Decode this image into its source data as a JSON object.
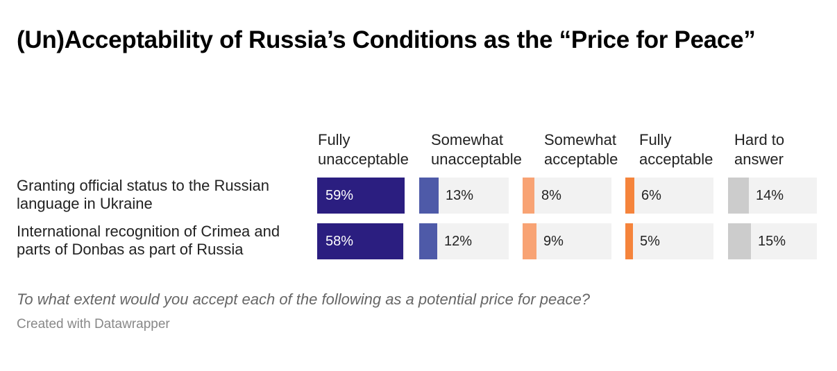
{
  "chart_data": {
    "type": "bar",
    "title": "(Un)Acceptability of Russia’s Conditions as the “Price for Peace”",
    "columns": [
      {
        "name": "Fully unacceptable",
        "lines": [
          "Fully",
          "unacceptable"
        ],
        "color": "#2b1e80"
      },
      {
        "name": "Somewhat unacceptable",
        "lines": [
          "Somewhat",
          "unacceptable"
        ],
        "color": "#4e5aa8"
      },
      {
        "name": "Somewhat acceptable",
        "lines": [
          "Somewhat",
          "acceptable"
        ],
        "color": "#f8a374"
      },
      {
        "name": "Fully acceptable",
        "lines": [
          "Fully",
          "acceptable"
        ],
        "color": "#f5843c"
      },
      {
        "name": "Hard to answer",
        "lines": [
          "Hard to",
          "answer"
        ],
        "color": "#cccccc"
      }
    ],
    "rows": [
      {
        "label": "Granting official status to the Russian language in Ukraine",
        "lines": [
          "Granting official status to the Russian",
          "language in Ukraine"
        ],
        "values": [
          59,
          13,
          8,
          6,
          14
        ],
        "labels": [
          "59%",
          "13%",
          "8%",
          "6%",
          "14%"
        ]
      },
      {
        "label": "International recognition of Crimea and parts of Donbas as part of Russia",
        "lines": [
          "International recognition of Crimea and",
          "parts of Donbas as part of Russia"
        ],
        "values": [
          58,
          12,
          9,
          5,
          15
        ],
        "labels": [
          "58%",
          "12%",
          "9%",
          "5%",
          "15%"
        ]
      }
    ],
    "unit": "%",
    "question": "To what extent would you accept each of the following as a potential price for peace?",
    "credit": "Created with Datawrapper"
  }
}
